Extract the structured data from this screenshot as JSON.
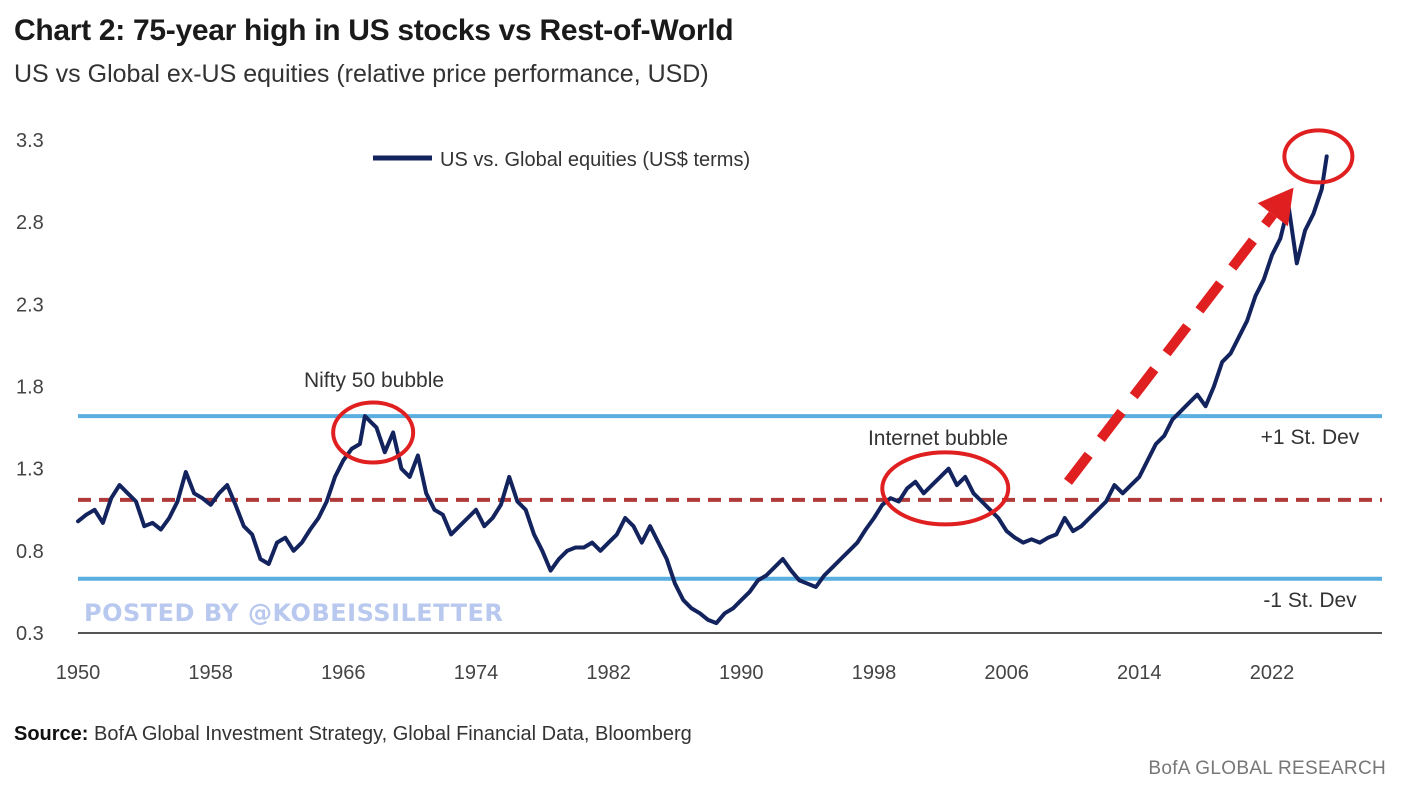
{
  "header": {
    "title": "Chart 2: 75-year high in US stocks vs Rest-of-World",
    "subtitle": "US vs Global ex-US equities (relative price performance, USD)"
  },
  "footer": {
    "source_label": "Source:",
    "source_text": "BofA Global Investment Strategy, Global Financial Data, Bloomberg",
    "brand": "BofA GLOBAL RESEARCH"
  },
  "watermark": "POSTED BY @KOBEISSILETTER",
  "colors": {
    "series": "#13235e",
    "band": "#5aaee0",
    "mean": "#b03a3a",
    "highlight": "#e02020"
  },
  "chart_data": {
    "type": "line",
    "title": "Chart 2: 75-year high in US stocks vs Rest-of-World",
    "subtitle": "US vs Global ex-US equities (relative price performance, USD)",
    "xlabel": "",
    "ylabel": "",
    "xlim": [
      1950,
      2025.5
    ],
    "ylim": [
      0.3,
      3.3
    ],
    "x_ticks": [
      1950,
      1958,
      1966,
      1974,
      1982,
      1990,
      1998,
      2006,
      2014,
      2022
    ],
    "y_ticks": [
      0.3,
      0.8,
      1.3,
      1.8,
      2.3,
      2.8,
      3.3
    ],
    "y_tick_labels": [
      "0.3",
      "0.8",
      "1.3",
      "1.8",
      "2.3",
      "2.8",
      "3.3"
    ],
    "grid": false,
    "legend_position": "top-center",
    "series": [
      {
        "name": "US vs. Global equities (US$ terms)",
        "x": [
          1950,
          1950.5,
          1951,
          1951.5,
          1952,
          1952.5,
          1953,
          1953.5,
          1954,
          1954.5,
          1955,
          1955.5,
          1956,
          1956.5,
          1957,
          1957.5,
          1958,
          1958.5,
          1959,
          1959.5,
          1960,
          1960.5,
          1961,
          1961.5,
          1962,
          1962.5,
          1963,
          1963.5,
          1964,
          1964.5,
          1965,
          1965.5,
          1966,
          1966.5,
          1967,
          1967.3,
          1967.7,
          1968,
          1968.5,
          1969,
          1969.5,
          1970,
          1970.5,
          1971,
          1971.5,
          1972,
          1972.5,
          1973,
          1973.5,
          1974,
          1974.5,
          1975,
          1975.5,
          1976,
          1976.5,
          1977,
          1977.5,
          1978,
          1978.5,
          1979,
          1979.5,
          1980,
          1980.5,
          1981,
          1981.5,
          1982,
          1982.5,
          1983,
          1983.5,
          1984,
          1984.5,
          1985,
          1985.5,
          1986,
          1986.5,
          1987,
          1987.5,
          1988,
          1988.5,
          1989,
          1989.5,
          1990,
          1990.5,
          1991,
          1991.5,
          1992,
          1992.5,
          1993,
          1993.5,
          1994,
          1994.5,
          1995,
          1995.5,
          1996,
          1996.5,
          1997,
          1997.5,
          1998,
          1998.5,
          1999,
          1999.5,
          2000,
          2000.5,
          2001,
          2001.5,
          2002,
          2002.5,
          2003,
          2003.5,
          2004,
          2004.5,
          2005,
          2005.5,
          2006,
          2006.5,
          2007,
          2007.5,
          2008,
          2008.5,
          2009,
          2009.5,
          2010,
          2010.5,
          2011,
          2011.5,
          2012,
          2012.5,
          2013,
          2013.5,
          2014,
          2014.5,
          2015,
          2015.5,
          2016,
          2016.5,
          2017,
          2017.5,
          2018,
          2018.5,
          2019,
          2019.5,
          2020,
          2020.5,
          2021,
          2021.5,
          2022,
          2022.5,
          2023,
          2023.5,
          2024,
          2024.5,
          2025,
          2025.3
        ],
        "values": [
          0.98,
          1.02,
          1.05,
          0.97,
          1.12,
          1.2,
          1.15,
          1.1,
          0.95,
          0.97,
          0.93,
          1.0,
          1.1,
          1.28,
          1.15,
          1.12,
          1.08,
          1.15,
          1.2,
          1.08,
          0.95,
          0.9,
          0.75,
          0.72,
          0.85,
          0.88,
          0.8,
          0.85,
          0.93,
          1.0,
          1.1,
          1.25,
          1.35,
          1.42,
          1.45,
          1.62,
          1.58,
          1.55,
          1.4,
          1.52,
          1.3,
          1.25,
          1.38,
          1.15,
          1.05,
          1.02,
          0.9,
          0.95,
          1.0,
          1.05,
          0.95,
          1.0,
          1.08,
          1.25,
          1.1,
          1.05,
          0.9,
          0.8,
          0.68,
          0.75,
          0.8,
          0.82,
          0.82,
          0.85,
          0.8,
          0.85,
          0.9,
          1.0,
          0.95,
          0.85,
          0.95,
          0.85,
          0.75,
          0.6,
          0.5,
          0.45,
          0.42,
          0.38,
          0.36,
          0.42,
          0.45,
          0.5,
          0.55,
          0.62,
          0.65,
          0.7,
          0.75,
          0.68,
          0.62,
          0.6,
          0.58,
          0.65,
          0.7,
          0.75,
          0.8,
          0.85,
          0.93,
          1.0,
          1.08,
          1.12,
          1.1,
          1.18,
          1.22,
          1.15,
          1.2,
          1.25,
          1.3,
          1.2,
          1.25,
          1.15,
          1.1,
          1.05,
          1.0,
          0.92,
          0.88,
          0.85,
          0.87,
          0.85,
          0.88,
          0.9,
          1.0,
          0.92,
          0.95,
          1.0,
          1.05,
          1.1,
          1.2,
          1.15,
          1.2,
          1.25,
          1.35,
          1.45,
          1.5,
          1.6,
          1.65,
          1.7,
          1.75,
          1.68,
          1.8,
          1.95,
          2.0,
          2.1,
          2.2,
          2.35,
          2.45,
          2.6,
          2.7,
          2.9,
          2.55,
          2.75,
          2.85,
          3.0,
          3.2
        ]
      }
    ],
    "reference_lines": [
      {
        "label": "+1 St. Dev",
        "value": 1.62,
        "style": "solid"
      },
      {
        "label": "",
        "value": 1.11,
        "style": "dashed"
      },
      {
        "label": "-1 St. Dev",
        "value": 0.63,
        "style": "solid"
      }
    ],
    "annotations": [
      {
        "text": "Nifty 50 bubble",
        "x": 1967.8,
        "y": 1.52
      },
      {
        "text": "Internet bubble",
        "x": 2002.3,
        "y": 1.18
      }
    ],
    "highlights": [
      {
        "x": 1967.8,
        "y": 1.52
      },
      {
        "x": 2002.3,
        "y": 1.18
      },
      {
        "x": 2024.8,
        "y": 3.2
      }
    ],
    "trend_arrow": {
      "from": [
        2009.7,
        1.22
      ],
      "to": [
        2023.3,
        3.01
      ]
    }
  }
}
